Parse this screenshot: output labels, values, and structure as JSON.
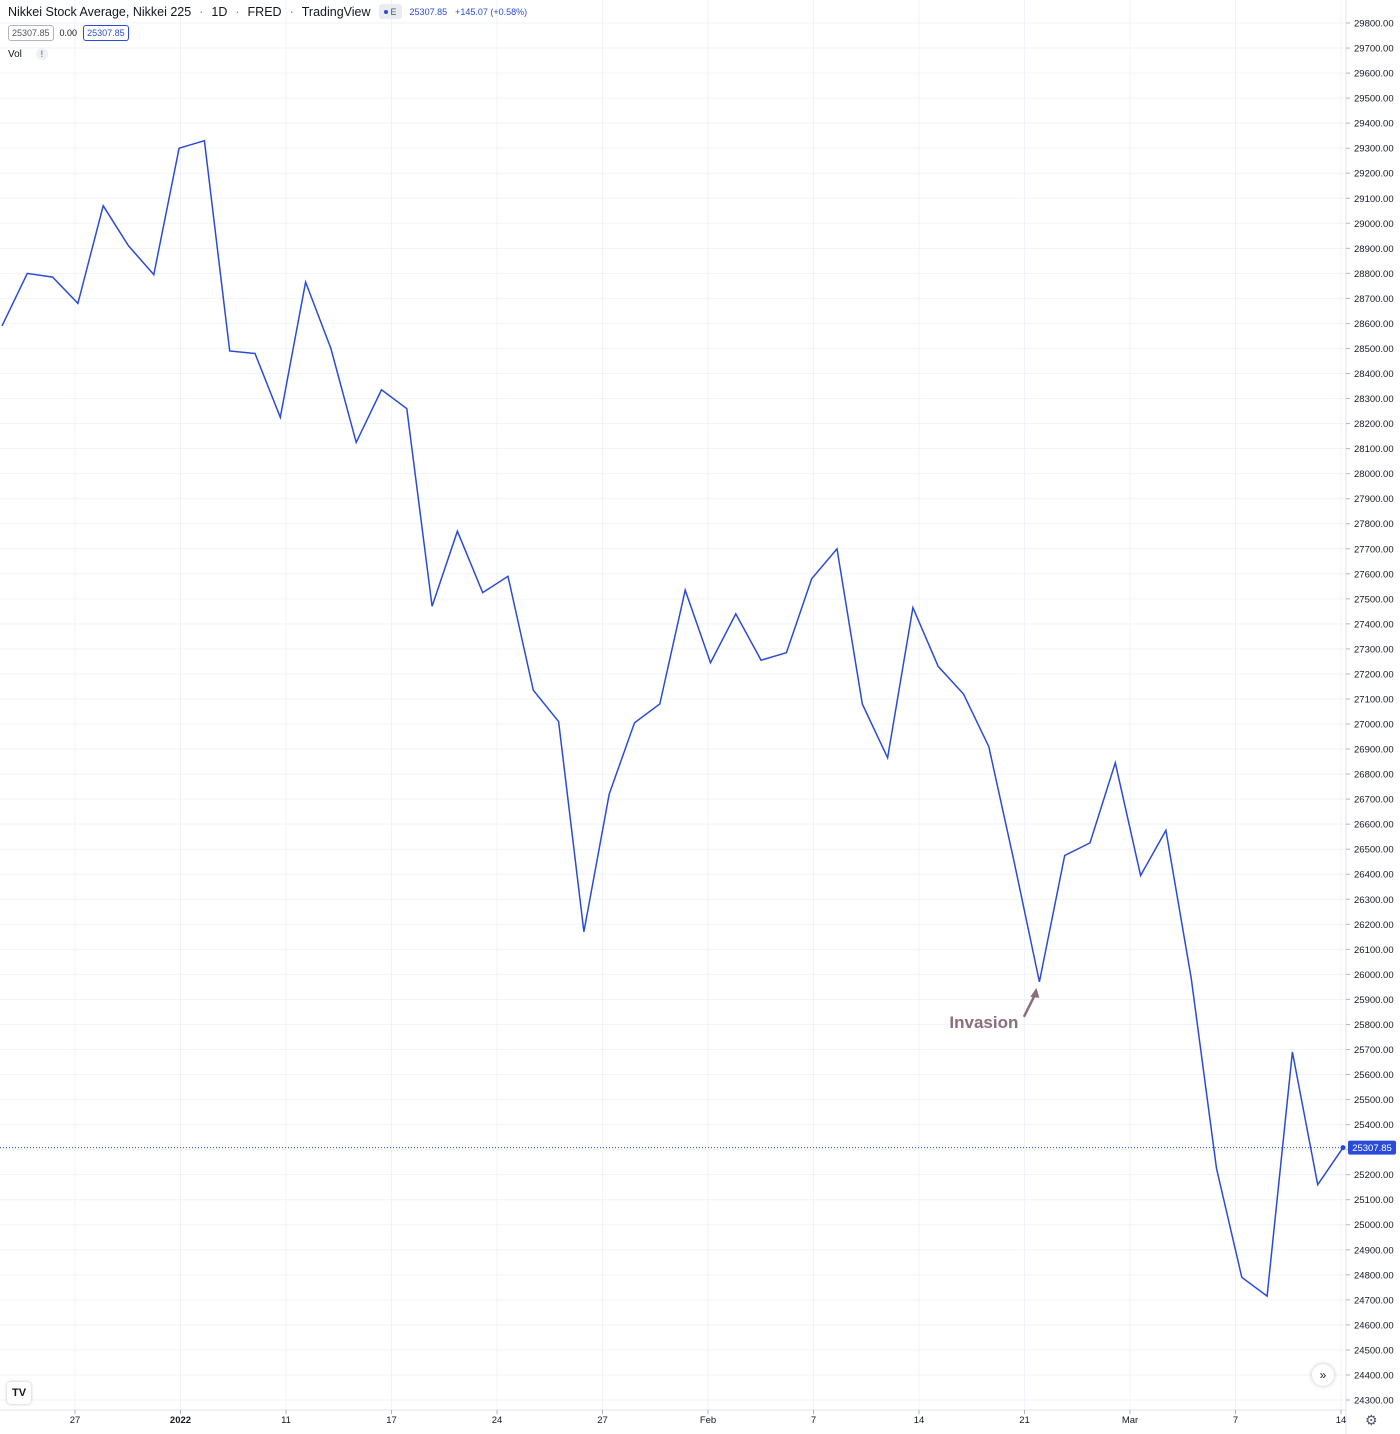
{
  "legend": {
    "title": "Nikkei Stock Average, Nikkei 225",
    "interval": "1D",
    "source": "FRED",
    "platform": "TradingView",
    "eye_label": "E",
    "last_value": "25307.85",
    "change": "+145.07 (+0.58%)",
    "value_box": "25307.85",
    "zero_value": "0.00",
    "value_box_2": "25307.85",
    "vol_label": "Vol",
    "vol_icon": "!"
  },
  "branding": {
    "logo_text": "TV",
    "scroll_icon": "»",
    "settings_icon": "⚙"
  },
  "colors": {
    "line": "#2a4bd7",
    "annotation": "#8a6e7a",
    "grid": "#f0f3fa",
    "price_tag": "#2a4bd7"
  },
  "chart_data": {
    "type": "line",
    "title": "Nikkei Stock Average, Nikkei 225",
    "y_axis": {
      "range": [
        24300,
        29800
      ],
      "step": 100,
      "position": "right",
      "decimals": 2
    },
    "x_tick_labels": [
      "27",
      "2022",
      "11",
      "17",
      "24",
      "27",
      "Feb",
      "7",
      "14",
      "21",
      "Mar",
      "7",
      "14"
    ],
    "x_tick_bold": [
      "2022"
    ],
    "series": [
      {
        "values": [
          28590,
          28800,
          28785,
          28680,
          29070,
          28910,
          28795,
          29300,
          29330,
          28490,
          28480,
          28225,
          28765,
          28500,
          28125,
          28335,
          28260,
          27470,
          27770,
          27525,
          27590,
          27135,
          27010,
          26170,
          26720,
          27005,
          27080,
          27535,
          27245,
          27440,
          27255,
          27285,
          27580,
          27700,
          27080,
          26865,
          27465,
          27230,
          27120,
          26910,
          26450,
          25970,
          26475,
          26525,
          26845,
          26395,
          26575,
          25985,
          25225,
          24790,
          24715,
          25690,
          25160,
          25307.85
        ]
      }
    ],
    "last_value": 25307.85,
    "annotations": [
      {
        "text": "Invasion",
        "index": 41
      }
    ],
    "grid": true
  }
}
